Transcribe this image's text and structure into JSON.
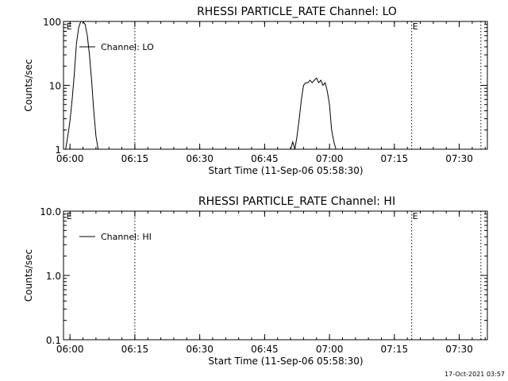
{
  "chart_data": [
    {
      "type": "line",
      "title": "RHESSI PARTICLE_RATE Channel: LO",
      "xlabel": "Start Time (11-Sep-06 05:58:30)",
      "ylabel": "Counts/sec",
      "yscale": "log",
      "ylim": [
        1,
        100
      ],
      "ytick_labels": [
        "1",
        "10",
        "100"
      ],
      "ytick_values": [
        1,
        10,
        100
      ],
      "xlim": [
        "05:58:30",
        "07:36:30"
      ],
      "xtick_labels": [
        "06:00",
        "06:15",
        "06:30",
        "06:45",
        "07:00",
        "07:15",
        "07:30"
      ],
      "xtick_values": [
        "06:00",
        "06:15",
        "06:30",
        "06:45",
        "07:00",
        "07:15",
        "07:30"
      ],
      "vlines": [
        "06:15",
        "07:19",
        "07:35"
      ],
      "annotations": [
        {
          "text": "E",
          "x": "05:59"
        },
        {
          "text": "E",
          "x": "07:19"
        }
      ],
      "legend": {
        "label": "Channel: LO",
        "position": "top-left"
      },
      "series": [
        {
          "name": "Channel: LO",
          "segments": [
            {
              "x": [
                "05:59:00",
                "05:59:30",
                "06:00:00",
                "06:00:30",
                "06:01:00",
                "06:01:30",
                "06:02:00",
                "06:02:30",
                "06:03:00",
                "06:03:30",
                "06:04:00",
                "06:04:30",
                "06:05:00",
                "06:05:30",
                "06:06:00",
                "06:06:30"
              ],
              "y": [
                1.0,
                1.6,
                2.8,
                6,
                15,
                45,
                80,
                100,
                100,
                90,
                60,
                30,
                12,
                4,
                1.6,
                1.0
              ]
            },
            {
              "x": [
                "06:51:00",
                "06:51:30",
                "06:52:00",
                "06:52:30",
                "06:53:00",
                "06:53:30",
                "06:54:00",
                "06:54:30",
                "06:55:00",
                "06:55:30",
                "06:56:00",
                "06:56:30",
                "06:57:00",
                "06:57:30",
                "06:58:00",
                "06:58:30",
                "06:59:00",
                "06:59:30",
                "07:00:00",
                "07:00:30",
                "07:01:00",
                "07:01:30",
                "07:02:00"
              ],
              "y": [
                1.0,
                1.3,
                1.0,
                1.6,
                3,
                6,
                10,
                11,
                11,
                12,
                11,
                12,
                13,
                11,
                12,
                10,
                11,
                8,
                5,
                2,
                1.3,
                1.0,
                1.0
              ]
            }
          ]
        }
      ]
    },
    {
      "type": "line",
      "title": "RHESSI PARTICLE_RATE Channel: HI",
      "xlabel": "Start Time (11-Sep-06 05:58:30)",
      "ylabel": "Counts/sec",
      "yscale": "log",
      "ylim": [
        0.1,
        10
      ],
      "ytick_labels": [
        "0.1",
        "1.0",
        "10.0"
      ],
      "ytick_values": [
        0.1,
        1,
        10
      ],
      "xlim": [
        "05:58:30",
        "07:36:30"
      ],
      "xtick_labels": [
        "06:00",
        "06:15",
        "06:30",
        "06:45",
        "07:00",
        "07:15",
        "07:30"
      ],
      "xtick_values": [
        "06:00",
        "06:15",
        "06:30",
        "06:45",
        "07:00",
        "07:15",
        "07:30"
      ],
      "vlines": [
        "06:15",
        "07:19",
        "07:35"
      ],
      "annotations": [
        {
          "text": "E",
          "x": "05:59"
        },
        {
          "text": "E",
          "x": "07:19"
        }
      ],
      "legend": {
        "label": "Channel: HI",
        "position": "top-left"
      },
      "series": [
        {
          "name": "Channel: HI",
          "segments": []
        }
      ]
    }
  ],
  "footer": {
    "timestamp": "17-Oct-2021 03:57"
  },
  "colors": {
    "foreground": "#000000",
    "background": "#ffffff"
  }
}
